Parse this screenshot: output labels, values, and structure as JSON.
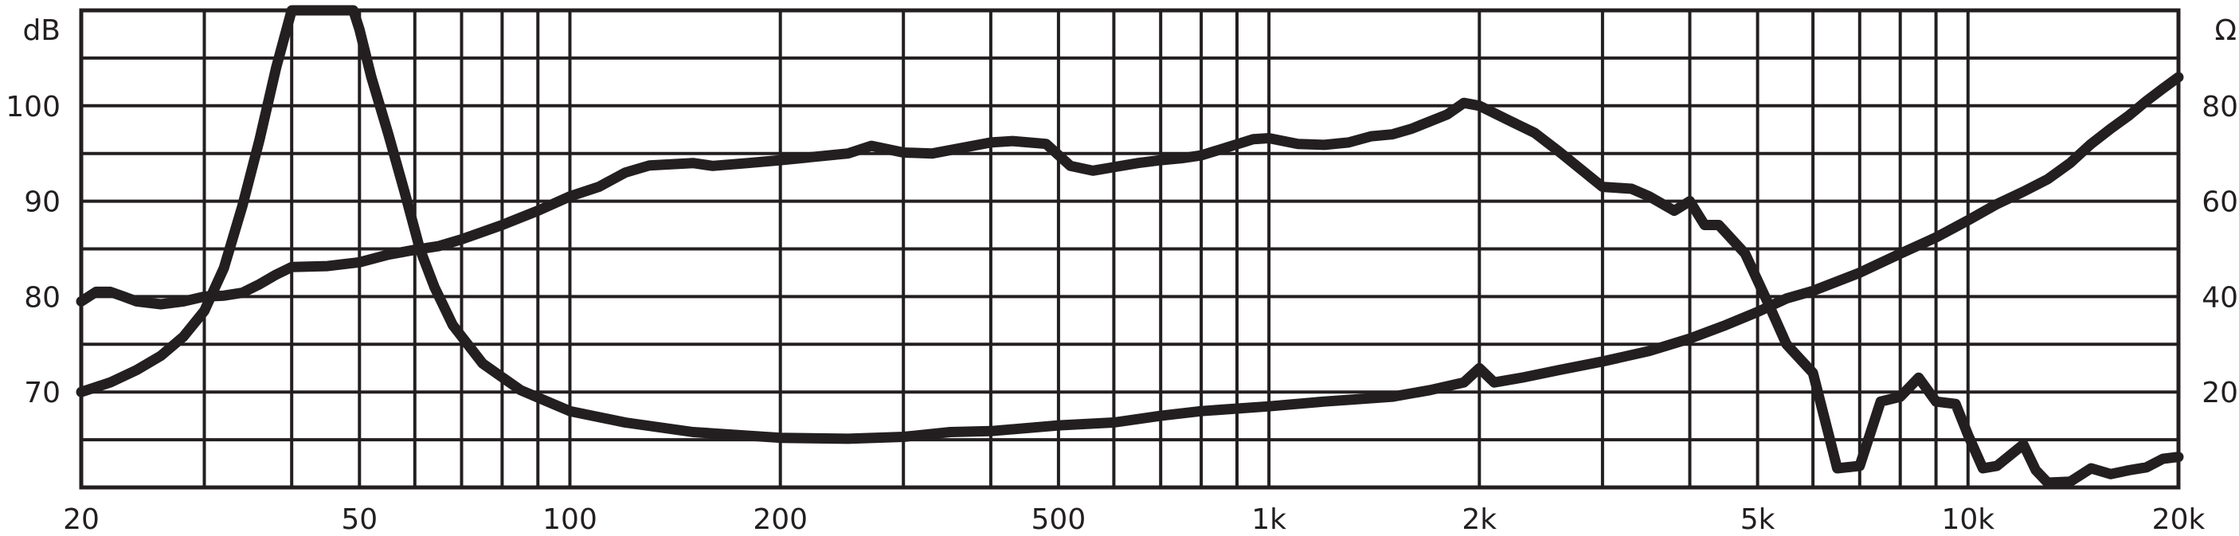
{
  "chart_data": {
    "type": "line",
    "title": "",
    "x_axis": {
      "scale": "log",
      "range": [
        20,
        20000
      ],
      "ticks": [
        20,
        50,
        100,
        200,
        500,
        1000,
        2000,
        5000,
        10000,
        20000
      ],
      "tick_labels": [
        "20",
        "50",
        "100",
        "200",
        "500",
        "1k",
        "2k",
        "5k",
        "10k",
        "20k"
      ]
    },
    "y_axis_left": {
      "unit_label": "dB",
      "range": [
        60,
        110
      ],
      "ticks": [
        70,
        80,
        90,
        100
      ],
      "tick_labels": [
        "70",
        "80",
        "90",
        "100"
      ]
    },
    "y_axis_right": {
      "unit_label": "Ω",
      "range": [
        0,
        100
      ],
      "ticks": [
        20,
        40,
        60,
        80
      ],
      "tick_labels": [
        "20",
        "40",
        "60",
        "80"
      ]
    },
    "grid": true,
    "series": [
      {
        "axis": "left",
        "color": "#231f20",
        "points": [
          [
            20,
            70
          ],
          [
            22,
            71
          ],
          [
            24,
            72.3
          ],
          [
            26,
            73.8
          ],
          [
            28,
            75.8
          ],
          [
            30,
            78.5
          ],
          [
            32,
            83
          ],
          [
            34,
            89.5
          ],
          [
            36,
            96.5
          ],
          [
            38,
            104
          ],
          [
            40,
            110
          ],
          [
            44,
            110
          ],
          [
            49,
            110
          ],
          [
            50,
            108
          ],
          [
            52,
            103
          ],
          [
            55,
            97
          ],
          [
            58,
            91
          ],
          [
            61,
            85
          ],
          [
            64,
            81
          ],
          [
            68,
            77
          ],
          [
            75,
            73
          ],
          [
            85,
            70.2
          ],
          [
            100,
            68
          ],
          [
            120,
            66.8
          ],
          [
            150,
            65.8
          ],
          [
            200,
            65.2
          ],
          [
            250,
            65.1
          ],
          [
            300,
            65.3
          ],
          [
            350,
            65.8
          ],
          [
            400,
            65.9
          ],
          [
            500,
            66.5
          ],
          [
            600,
            66.8
          ],
          [
            700,
            67.5
          ],
          [
            800,
            68
          ],
          [
            1000,
            68.5
          ],
          [
            1200,
            69
          ],
          [
            1500,
            69.5
          ],
          [
            1700,
            70.2
          ],
          [
            1900,
            71
          ],
          [
            2000,
            72.5
          ],
          [
            2100,
            71
          ],
          [
            2300,
            71.5
          ],
          [
            2600,
            72.3
          ],
          [
            3000,
            73.2
          ],
          [
            3500,
            74.3
          ],
          [
            4000,
            75.6
          ],
          [
            4500,
            77
          ],
          [
            5000,
            78.4
          ],
          [
            5500,
            79.8
          ],
          [
            6000,
            80.6
          ],
          [
            7000,
            82.5
          ],
          [
            8000,
            84.5
          ],
          [
            9000,
            86.2
          ],
          [
            10000,
            88
          ],
          [
            11000,
            89.7
          ],
          [
            12000,
            91
          ],
          [
            13000,
            92.3
          ],
          [
            14000,
            94
          ],
          [
            15000,
            96
          ],
          [
            16000,
            97.6
          ],
          [
            17000,
            99
          ],
          [
            18000,
            100.5
          ],
          [
            19000,
            101.8
          ],
          [
            20000,
            103
          ]
        ]
      },
      {
        "axis": "right",
        "color": "#231f20",
        "points": [
          [
            20,
            39
          ],
          [
            21,
            41
          ],
          [
            22,
            41
          ],
          [
            23,
            40
          ],
          [
            24,
            39
          ],
          [
            26,
            38.4
          ],
          [
            28,
            39
          ],
          [
            30,
            40
          ],
          [
            32,
            40.2
          ],
          [
            34,
            40.8
          ],
          [
            36,
            42.6
          ],
          [
            38,
            44.6
          ],
          [
            40,
            46.2
          ],
          [
            45,
            46.4
          ],
          [
            50,
            47.2
          ],
          [
            55,
            48.8
          ],
          [
            60,
            49.8
          ],
          [
            65,
            50.6
          ],
          [
            70,
            52
          ],
          [
            80,
            55
          ],
          [
            90,
            58
          ],
          [
            100,
            61
          ],
          [
            110,
            63
          ],
          [
            120,
            66
          ],
          [
            130,
            67.5
          ],
          [
            150,
            68
          ],
          [
            160,
            67.4
          ],
          [
            180,
            68
          ],
          [
            200,
            68.6
          ],
          [
            250,
            70
          ],
          [
            270,
            71.6
          ],
          [
            300,
            70.2
          ],
          [
            330,
            70
          ],
          [
            400,
            72.3
          ],
          [
            430,
            72.6
          ],
          [
            480,
            72
          ],
          [
            520,
            67.4
          ],
          [
            560,
            66.4
          ],
          [
            650,
            68
          ],
          [
            700,
            68.6
          ],
          [
            750,
            69
          ],
          [
            800,
            69.6
          ],
          [
            850,
            70.8
          ],
          [
            950,
            73
          ],
          [
            1000,
            73.2
          ],
          [
            1100,
            72
          ],
          [
            1200,
            71.8
          ],
          [
            1300,
            72.3
          ],
          [
            1400,
            73.6
          ],
          [
            1500,
            74
          ],
          [
            1600,
            75.2
          ],
          [
            1800,
            78.2
          ],
          [
            1900,
            80.6
          ],
          [
            2000,
            80
          ],
          [
            2200,
            77
          ],
          [
            2400,
            74.3
          ],
          [
            2600,
            70.4
          ],
          [
            3000,
            63
          ],
          [
            3300,
            62.6
          ],
          [
            3500,
            61
          ],
          [
            3800,
            58
          ],
          [
            4000,
            60
          ],
          [
            4200,
            55
          ],
          [
            4400,
            55
          ],
          [
            4800,
            49
          ],
          [
            5200,
            38
          ],
          [
            5500,
            30
          ],
          [
            6000,
            24
          ],
          [
            6500,
            4
          ],
          [
            7000,
            4.5
          ],
          [
            7500,
            18
          ],
          [
            8000,
            19
          ],
          [
            8500,
            23
          ],
          [
            9000,
            18
          ],
          [
            9600,
            17.5
          ],
          [
            10000,
            11
          ],
          [
            10500,
            4
          ],
          [
            11000,
            4.5
          ],
          [
            12000,
            9
          ],
          [
            12500,
            3.6
          ],
          [
            13000,
            1
          ],
          [
            14000,
            1.2
          ],
          [
            15000,
            4
          ],
          [
            16000,
            2.8
          ],
          [
            17000,
            3.6
          ],
          [
            18000,
            4.2
          ],
          [
            19000,
            6
          ],
          [
            20000,
            6.4
          ]
        ]
      }
    ]
  }
}
